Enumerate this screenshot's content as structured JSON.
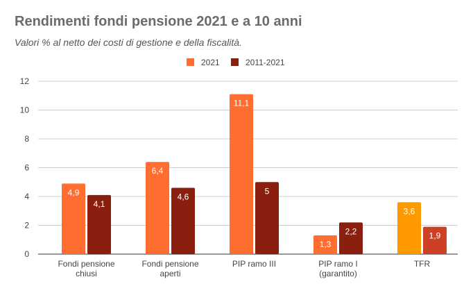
{
  "chart_data": {
    "type": "bar",
    "title": "Rendimenti fondi pensione 2021 e a 10 anni",
    "subtitle": "Valori % al netto dei costi di gestione e della fiscalità.",
    "xlabel": "",
    "ylabel": "",
    "ylim": [
      0,
      12
    ],
    "yticks": [
      "0",
      "2",
      "4",
      "6",
      "8",
      "10",
      "12"
    ],
    "grid": true,
    "legend_position": "top-right",
    "categories": [
      [
        "Fondi pensione",
        "chiusi"
      ],
      [
        "Fondi pensione",
        "aperti"
      ],
      [
        "PIP ramo III"
      ],
      [
        "PIP ramo I",
        "(garantito)"
      ],
      [
        "TFR"
      ]
    ],
    "series": [
      {
        "name": "2021",
        "color": "#FF6D31",
        "values": [
          4.9,
          6.4,
          11.1,
          1.3,
          3.6
        ],
        "labels": [
          "4,9",
          "6,4",
          "11,1",
          "1,3",
          "3,6"
        ],
        "point_colors": [
          null,
          null,
          null,
          null,
          "#FF9900"
        ]
      },
      {
        "name": "2011-2021",
        "color": "#8A1F10",
        "values": [
          4.1,
          4.6,
          5,
          2.2,
          1.9
        ],
        "labels": [
          "4,1",
          "4,6",
          "5",
          "2,2",
          "1,9"
        ],
        "point_colors": [
          null,
          null,
          null,
          null,
          "#CC4125"
        ]
      }
    ]
  }
}
